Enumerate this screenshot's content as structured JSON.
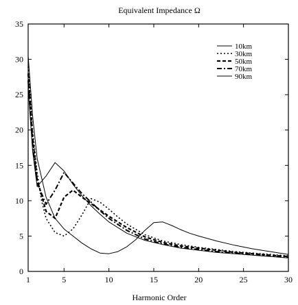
{
  "chart_data": {
    "type": "line",
    "title": "Equivalent Impedance Ω",
    "xlabel": "Harmonic Order",
    "ylabel": "",
    "xlim": [
      1,
      30
    ],
    "ylim": [
      0,
      35
    ],
    "xticks": [
      1,
      5,
      10,
      15,
      20,
      25,
      30
    ],
    "yticks": [
      0,
      5,
      10,
      15,
      20,
      25,
      30,
      35
    ],
    "legend_position": "top-right",
    "grid": false,
    "series": [
      {
        "name": "10km",
        "dash": "",
        "width": 1.0,
        "x": [
          1,
          1.5,
          2,
          3,
          4,
          5,
          6,
          7,
          8,
          9,
          10,
          11,
          12,
          13,
          14,
          15,
          16,
          17,
          18,
          19,
          20,
          22,
          24,
          26,
          28,
          30
        ],
        "y": [
          30.5,
          22,
          16,
          10.5,
          7.5,
          6,
          5,
          4,
          3.2,
          2.6,
          2.5,
          2.8,
          3.5,
          4.5,
          5.8,
          6.9,
          7.0,
          6.5,
          5.9,
          5.4,
          5.0,
          4.3,
          3.7,
          3.2,
          2.8,
          2.4
        ]
      },
      {
        "name": "30km",
        "dash": "2,3",
        "width": 1.6,
        "x": [
          1,
          1.5,
          2,
          2.5,
          3,
          4,
          5,
          6,
          7,
          8,
          9,
          10,
          11,
          12,
          14,
          16,
          18,
          20,
          22,
          24,
          26,
          28,
          30
        ],
        "y": [
          29,
          20,
          14,
          10,
          7.5,
          5.5,
          5.0,
          6.0,
          8.0,
          10.3,
          9.8,
          8.8,
          7.7,
          6.7,
          5.2,
          4.3,
          3.8,
          3.4,
          3.1,
          2.8,
          2.6,
          2.4,
          2.2
        ]
      },
      {
        "name": "50km",
        "dash": "5,3",
        "width": 2.2,
        "x": [
          1,
          1.5,
          2,
          3,
          4,
          5,
          6,
          7,
          8,
          9,
          10,
          12,
          14,
          16,
          18,
          20,
          22,
          24,
          26,
          28,
          30
        ],
        "y": [
          28,
          19,
          13,
          8.5,
          7.5,
          10.5,
          11.5,
          10.5,
          9.6,
          8.7,
          7.8,
          6.2,
          4.9,
          4.1,
          3.6,
          3.3,
          3.0,
          2.7,
          2.5,
          2.3,
          2.1
        ]
      },
      {
        "name": "70km",
        "dash": "7,3,2,3",
        "width": 2.0,
        "x": [
          1,
          1.5,
          2,
          3,
          4,
          5,
          6,
          7,
          8,
          9,
          10,
          12,
          14,
          16,
          18,
          20,
          22,
          24,
          26,
          28,
          30
        ],
        "y": [
          27,
          18,
          12.5,
          9.5,
          11.5,
          14.0,
          12.5,
          11.0,
          9.8,
          8.6,
          7.5,
          5.8,
          4.6,
          3.9,
          3.4,
          3.1,
          2.8,
          2.6,
          2.4,
          2.2,
          2.0
        ]
      },
      {
        "name": "90km",
        "dash": "",
        "width": 1.0,
        "x": [
          1,
          1.5,
          2,
          3,
          4,
          5,
          6,
          7,
          8,
          9,
          10,
          12,
          14,
          16,
          18,
          20,
          22,
          24,
          26,
          28,
          30
        ],
        "y": [
          26,
          17,
          12,
          13.5,
          15.4,
          14.2,
          12.3,
          10.7,
          9.3,
          8.1,
          7.0,
          5.4,
          4.4,
          3.8,
          3.3,
          3.0,
          2.7,
          2.5,
          2.3,
          2.1,
          1.9
        ]
      }
    ]
  }
}
